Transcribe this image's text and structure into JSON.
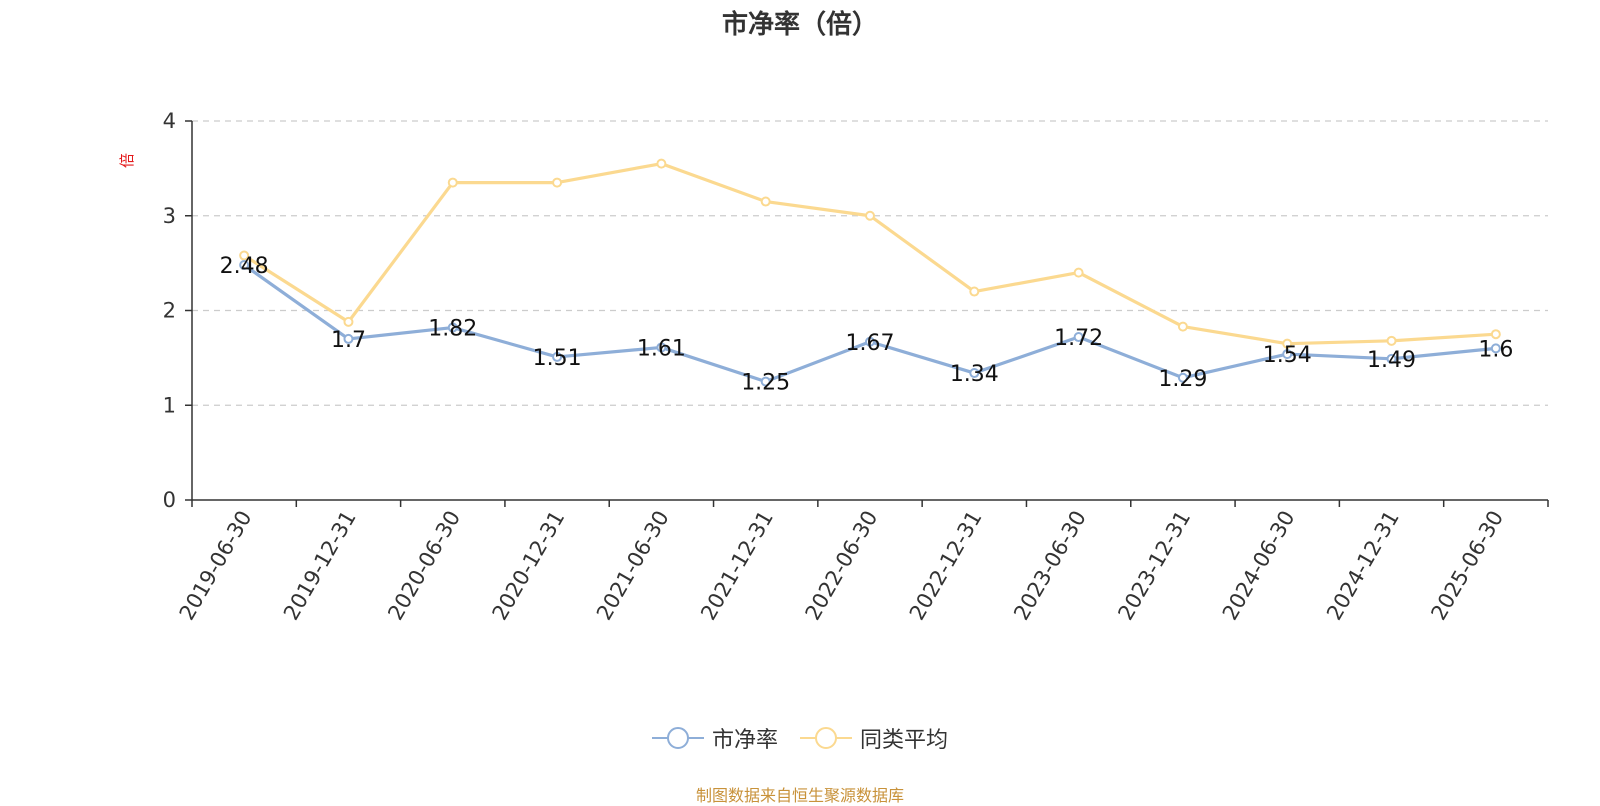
{
  "chart_data": {
    "type": "line",
    "title": "市净率（倍）",
    "unit": "倍",
    "categories": [
      "2019-06-30",
      "2019-12-31",
      "2020-06-30",
      "2020-12-31",
      "2021-06-30",
      "2021-12-31",
      "2022-06-30",
      "2022-12-31",
      "2023-06-30",
      "2023-12-31",
      "2024-06-30",
      "2024-12-31",
      "2025-06-30"
    ],
    "series": [
      {
        "name": "市净率",
        "color": "#8eaed8",
        "values": [
          2.48,
          1.7,
          1.82,
          1.51,
          1.61,
          1.25,
          1.67,
          1.34,
          1.72,
          1.29,
          1.54,
          1.49,
          1.6
        ],
        "labels": [
          "2.48",
          "1.7",
          "1.82",
          "1.51",
          "1.61",
          "1.25",
          "1.67",
          "1.34",
          "1.72",
          "1.29",
          "1.54",
          "1.49",
          "1.6"
        ]
      },
      {
        "name": "同类平均",
        "color": "#fbd990",
        "values": [
          2.58,
          1.88,
          3.35,
          3.35,
          3.55,
          3.15,
          3.0,
          2.2,
          2.4,
          1.83,
          1.65,
          1.68,
          1.75
        ]
      }
    ],
    "ylim": [
      0,
      4
    ],
    "yticks": [
      "0",
      "1",
      "2",
      "3",
      "4"
    ],
    "grid": true,
    "legend_position": "bottom-center"
  },
  "source_note": "制图数据来自恒生聚源数据库"
}
